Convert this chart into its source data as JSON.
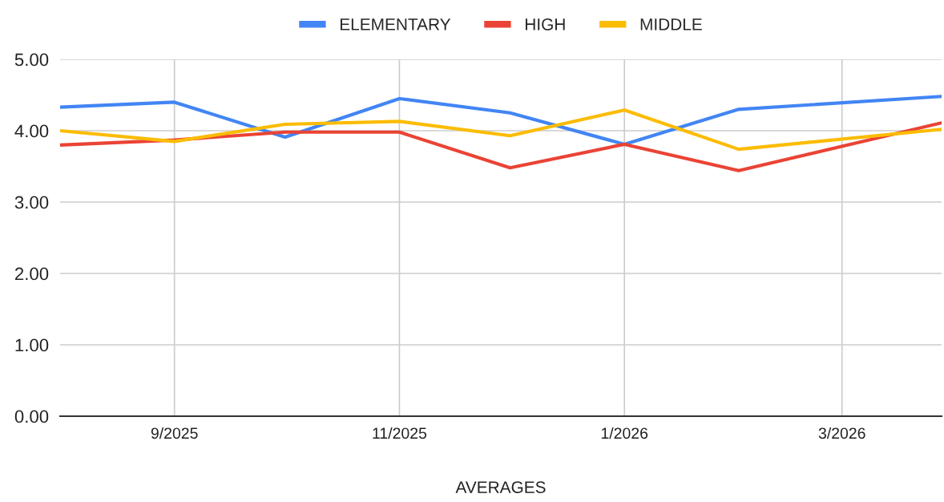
{
  "chart_data": {
    "type": "line",
    "xlabel": "AVERAGES",
    "x": [
      "2025-08-01",
      "2025-09-01",
      "2025-10-01",
      "2025-11-01",
      "2025-12-01",
      "2026-01-01",
      "2026-02-01",
      "2026-03-28"
    ],
    "series": [
      {
        "name": "ELEMENTARY",
        "color": "#4285f4",
        "values": [
          4.33,
          4.4,
          3.91,
          4.45,
          4.25,
          3.81,
          4.3,
          4.48
        ]
      },
      {
        "name": "HIGH",
        "color": "#ea4335",
        "values": [
          3.8,
          3.87,
          3.98,
          3.98,
          3.48,
          3.81,
          3.44,
          4.11
        ]
      },
      {
        "name": "MIDDLE",
        "color": "#fbbc04",
        "values": [
          4.0,
          3.85,
          4.09,
          4.13,
          3.93,
          4.29,
          3.74,
          4.02
        ]
      }
    ],
    "xlim": [
      "2025-08-01",
      "2026-03-28"
    ],
    "xticks": [
      {
        "value": "2025-09-01",
        "label": "9/2025"
      },
      {
        "value": "2025-11-01",
        "label": "11/2025"
      },
      {
        "value": "2026-01-01",
        "label": "1/2026"
      },
      {
        "value": "2026-03-01",
        "label": "3/2026"
      }
    ],
    "ylim": [
      0,
      5
    ],
    "yticks": [
      {
        "value": 0,
        "label": "0.00"
      },
      {
        "value": 1,
        "label": "1.00"
      },
      {
        "value": 2,
        "label": "2.00"
      },
      {
        "value": 3,
        "label": "3.00"
      },
      {
        "value": 4,
        "label": "4.00"
      },
      {
        "value": 5,
        "label": "5.00"
      }
    ],
    "grid": true,
    "legend": "top",
    "marker": "none",
    "line_style": "solid"
  }
}
